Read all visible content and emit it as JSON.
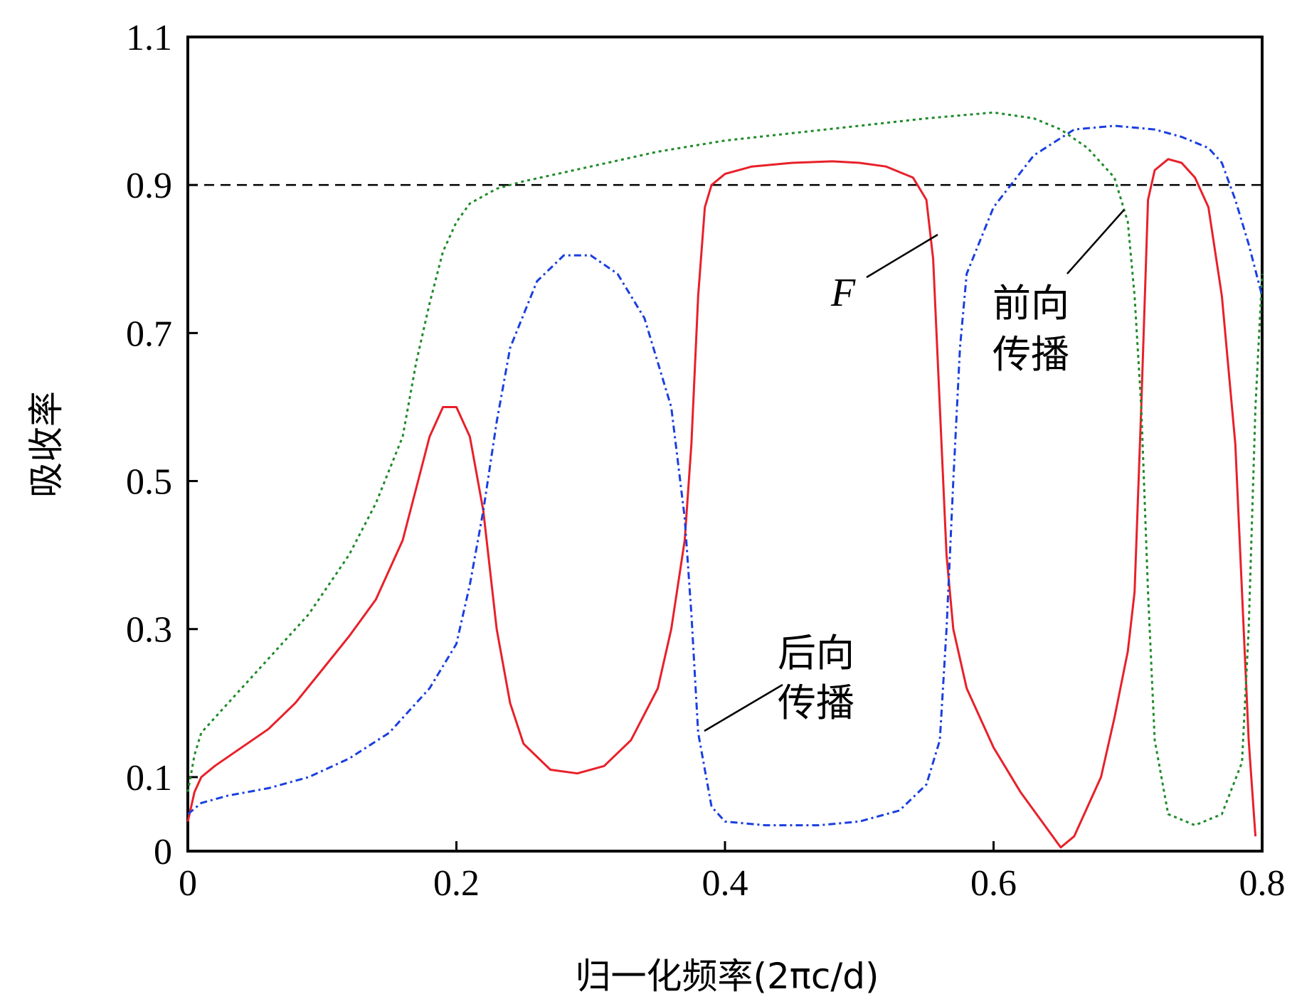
{
  "chart_data": {
    "type": "line",
    "xlabel": "归一化频率(2πc/d)",
    "ylabel": "吸收率",
    "xlim": [
      0,
      0.8
    ],
    "ylim": [
      0,
      1.1
    ],
    "x_ticks": [
      "0",
      "0.2",
      "0.4",
      "0.6",
      "0.8"
    ],
    "y_ticks": [
      "0",
      "0.1",
      "0.3",
      "0.5",
      "0.7",
      "0.9",
      "1.1"
    ],
    "y_tick_values": [
      0,
      0.1,
      0.3,
      0.5,
      0.7,
      0.9,
      1.1
    ],
    "reference_line": {
      "y": 0.9,
      "style": "dashed",
      "color": "#000000"
    },
    "annotations": [
      {
        "text": "F",
        "style": "italic",
        "target_series": 0
      },
      {
        "text": "前向",
        "line2": "传播",
        "target_series": 1
      },
      {
        "text": "后向",
        "line2": "传播",
        "target_series": 2
      }
    ],
    "series": [
      {
        "color": "#e8202a",
        "style": "solid",
        "points": [
          [
            0,
            0.04
          ],
          [
            0.005,
            0.08
          ],
          [
            0.01,
            0.1
          ],
          [
            0.02,
            0.115
          ],
          [
            0.04,
            0.14
          ],
          [
            0.06,
            0.165
          ],
          [
            0.08,
            0.2
          ],
          [
            0.1,
            0.245
          ],
          [
            0.12,
            0.29
          ],
          [
            0.14,
            0.34
          ],
          [
            0.16,
            0.42
          ],
          [
            0.17,
            0.49
          ],
          [
            0.18,
            0.56
          ],
          [
            0.19,
            0.6
          ],
          [
            0.2,
            0.6
          ],
          [
            0.21,
            0.56
          ],
          [
            0.22,
            0.46
          ],
          [
            0.23,
            0.3
          ],
          [
            0.24,
            0.2
          ],
          [
            0.25,
            0.145
          ],
          [
            0.27,
            0.11
          ],
          [
            0.29,
            0.105
          ],
          [
            0.31,
            0.115
          ],
          [
            0.33,
            0.15
          ],
          [
            0.35,
            0.22
          ],
          [
            0.36,
            0.3
          ],
          [
            0.37,
            0.42
          ],
          [
            0.375,
            0.55
          ],
          [
            0.38,
            0.75
          ],
          [
            0.385,
            0.87
          ],
          [
            0.39,
            0.9
          ],
          [
            0.4,
            0.915
          ],
          [
            0.42,
            0.925
          ],
          [
            0.45,
            0.93
          ],
          [
            0.48,
            0.932
          ],
          [
            0.5,
            0.93
          ],
          [
            0.52,
            0.925
          ],
          [
            0.54,
            0.91
          ],
          [
            0.55,
            0.88
          ],
          [
            0.555,
            0.8
          ],
          [
            0.56,
            0.6
          ],
          [
            0.565,
            0.4
          ],
          [
            0.57,
            0.3
          ],
          [
            0.58,
            0.22
          ],
          [
            0.6,
            0.14
          ],
          [
            0.62,
            0.08
          ],
          [
            0.64,
            0.03
          ],
          [
            0.65,
            0.005
          ],
          [
            0.66,
            0.02
          ],
          [
            0.68,
            0.1
          ],
          [
            0.69,
            0.18
          ],
          [
            0.7,
            0.27
          ],
          [
            0.705,
            0.35
          ],
          [
            0.71,
            0.6
          ],
          [
            0.715,
            0.88
          ],
          [
            0.72,
            0.92
          ],
          [
            0.73,
            0.935
          ],
          [
            0.74,
            0.93
          ],
          [
            0.75,
            0.91
          ],
          [
            0.76,
            0.87
          ],
          [
            0.77,
            0.75
          ],
          [
            0.78,
            0.55
          ],
          [
            0.785,
            0.35
          ],
          [
            0.79,
            0.15
          ],
          [
            0.795,
            0.02
          ]
        ]
      },
      {
        "color": "#1f8a2a",
        "style": "dotted",
        "points": [
          [
            0,
            0.08
          ],
          [
            0.005,
            0.13
          ],
          [
            0.01,
            0.16
          ],
          [
            0.03,
            0.2
          ],
          [
            0.06,
            0.26
          ],
          [
            0.09,
            0.32
          ],
          [
            0.12,
            0.4
          ],
          [
            0.14,
            0.47
          ],
          [
            0.16,
            0.56
          ],
          [
            0.17,
            0.66
          ],
          [
            0.18,
            0.74
          ],
          [
            0.19,
            0.81
          ],
          [
            0.2,
            0.85
          ],
          [
            0.21,
            0.875
          ],
          [
            0.23,
            0.895
          ],
          [
            0.25,
            0.905
          ],
          [
            0.3,
            0.925
          ],
          [
            0.35,
            0.945
          ],
          [
            0.4,
            0.96
          ],
          [
            0.45,
            0.97
          ],
          [
            0.5,
            0.98
          ],
          [
            0.55,
            0.99
          ],
          [
            0.6,
            0.998
          ],
          [
            0.63,
            0.99
          ],
          [
            0.65,
            0.975
          ],
          [
            0.67,
            0.95
          ],
          [
            0.69,
            0.91
          ],
          [
            0.7,
            0.85
          ],
          [
            0.705,
            0.75
          ],
          [
            0.71,
            0.6
          ],
          [
            0.715,
            0.35
          ],
          [
            0.72,
            0.15
          ],
          [
            0.73,
            0.05
          ],
          [
            0.75,
            0.035
          ],
          [
            0.77,
            0.05
          ],
          [
            0.785,
            0.12
          ],
          [
            0.79,
            0.3
          ],
          [
            0.795,
            0.6
          ],
          [
            0.8,
            0.78
          ]
        ]
      },
      {
        "color": "#1a3fe0",
        "style": "dashdot",
        "points": [
          [
            0,
            0.05
          ],
          [
            0.01,
            0.065
          ],
          [
            0.03,
            0.075
          ],
          [
            0.06,
            0.085
          ],
          [
            0.09,
            0.1
          ],
          [
            0.12,
            0.125
          ],
          [
            0.15,
            0.16
          ],
          [
            0.18,
            0.22
          ],
          [
            0.2,
            0.28
          ],
          [
            0.21,
            0.36
          ],
          [
            0.22,
            0.46
          ],
          [
            0.23,
            0.58
          ],
          [
            0.24,
            0.68
          ],
          [
            0.26,
            0.77
          ],
          [
            0.28,
            0.805
          ],
          [
            0.3,
            0.805
          ],
          [
            0.32,
            0.78
          ],
          [
            0.34,
            0.72
          ],
          [
            0.36,
            0.6
          ],
          [
            0.37,
            0.45
          ],
          [
            0.375,
            0.32
          ],
          [
            0.38,
            0.16
          ],
          [
            0.39,
            0.06
          ],
          [
            0.4,
            0.04
          ],
          [
            0.43,
            0.035
          ],
          [
            0.47,
            0.035
          ],
          [
            0.5,
            0.04
          ],
          [
            0.53,
            0.055
          ],
          [
            0.55,
            0.09
          ],
          [
            0.56,
            0.15
          ],
          [
            0.565,
            0.3
          ],
          [
            0.57,
            0.5
          ],
          [
            0.575,
            0.68
          ],
          [
            0.58,
            0.78
          ],
          [
            0.6,
            0.87
          ],
          [
            0.63,
            0.94
          ],
          [
            0.66,
            0.975
          ],
          [
            0.69,
            0.98
          ],
          [
            0.72,
            0.975
          ],
          [
            0.74,
            0.965
          ],
          [
            0.76,
            0.95
          ],
          [
            0.77,
            0.93
          ],
          [
            0.78,
            0.88
          ],
          [
            0.79,
            0.82
          ],
          [
            0.8,
            0.75
          ]
        ]
      }
    ]
  }
}
